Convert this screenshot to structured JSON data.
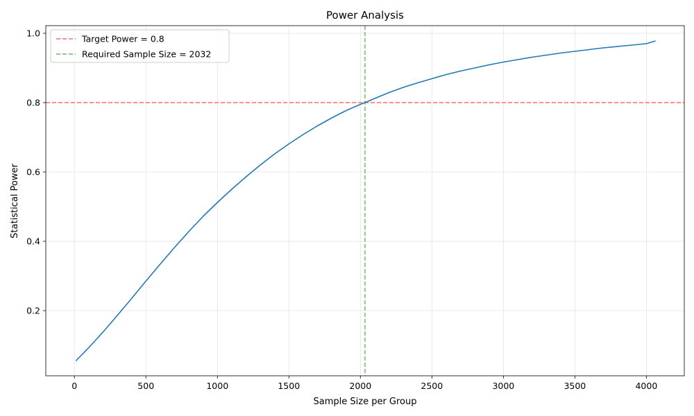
{
  "chart_data": {
    "type": "line",
    "title": "Power Analysis",
    "xlabel": "Sample Size per Group",
    "ylabel": "Statistical Power",
    "xlim": [
      -200,
      4265
    ],
    "ylim": [
      0.012,
      1.022
    ],
    "x_ticks": [
      0,
      500,
      1000,
      1500,
      2000,
      2500,
      3000,
      3500,
      4000
    ],
    "y_ticks": [
      0.2,
      0.4,
      0.6,
      0.8,
      1.0
    ],
    "x_tick_labels": [
      "0",
      "500",
      "1000",
      "1500",
      "2000",
      "2500",
      "3000",
      "3500",
      "4000"
    ],
    "y_tick_labels": [
      "0.2",
      "0.4",
      "0.6",
      "0.8",
      "1.0"
    ],
    "grid": true,
    "legend_position": "top-left",
    "series": [
      {
        "color": "#1f77b4",
        "x": [
          10,
          100,
          200,
          300,
          400,
          500,
          600,
          700,
          800,
          900,
          1000,
          1100,
          1200,
          1300,
          1400,
          1500,
          1600,
          1700,
          1800,
          1900,
          2000,
          2032,
          2100,
          2200,
          2300,
          2400,
          2500,
          2600,
          2700,
          2800,
          2900,
          3000,
          3100,
          3200,
          3300,
          3400,
          3500,
          3600,
          3700,
          3800,
          3900,
          4000,
          4064
        ],
        "y": [
          0.055,
          0.093,
          0.138,
          0.186,
          0.235,
          0.285,
          0.334,
          0.382,
          0.428,
          0.472,
          0.512,
          0.55,
          0.586,
          0.62,
          0.652,
          0.681,
          0.708,
          0.733,
          0.756,
          0.777,
          0.795,
          0.8,
          0.812,
          0.829,
          0.844,
          0.857,
          0.869,
          0.881,
          0.891,
          0.9,
          0.909,
          0.917,
          0.924,
          0.931,
          0.937,
          0.943,
          0.948,
          0.953,
          0.958,
          0.962,
          0.966,
          0.97,
          0.978
        ]
      }
    ],
    "reference_lines": [
      {
        "orientation": "horizontal",
        "value": 0.8,
        "color": "#ff6b6b",
        "label": "Target Power = 0.8"
      },
      {
        "orientation": "vertical",
        "value": 2032,
        "color": "#6abf69",
        "label": "Required Sample Size = 2032"
      }
    ]
  }
}
